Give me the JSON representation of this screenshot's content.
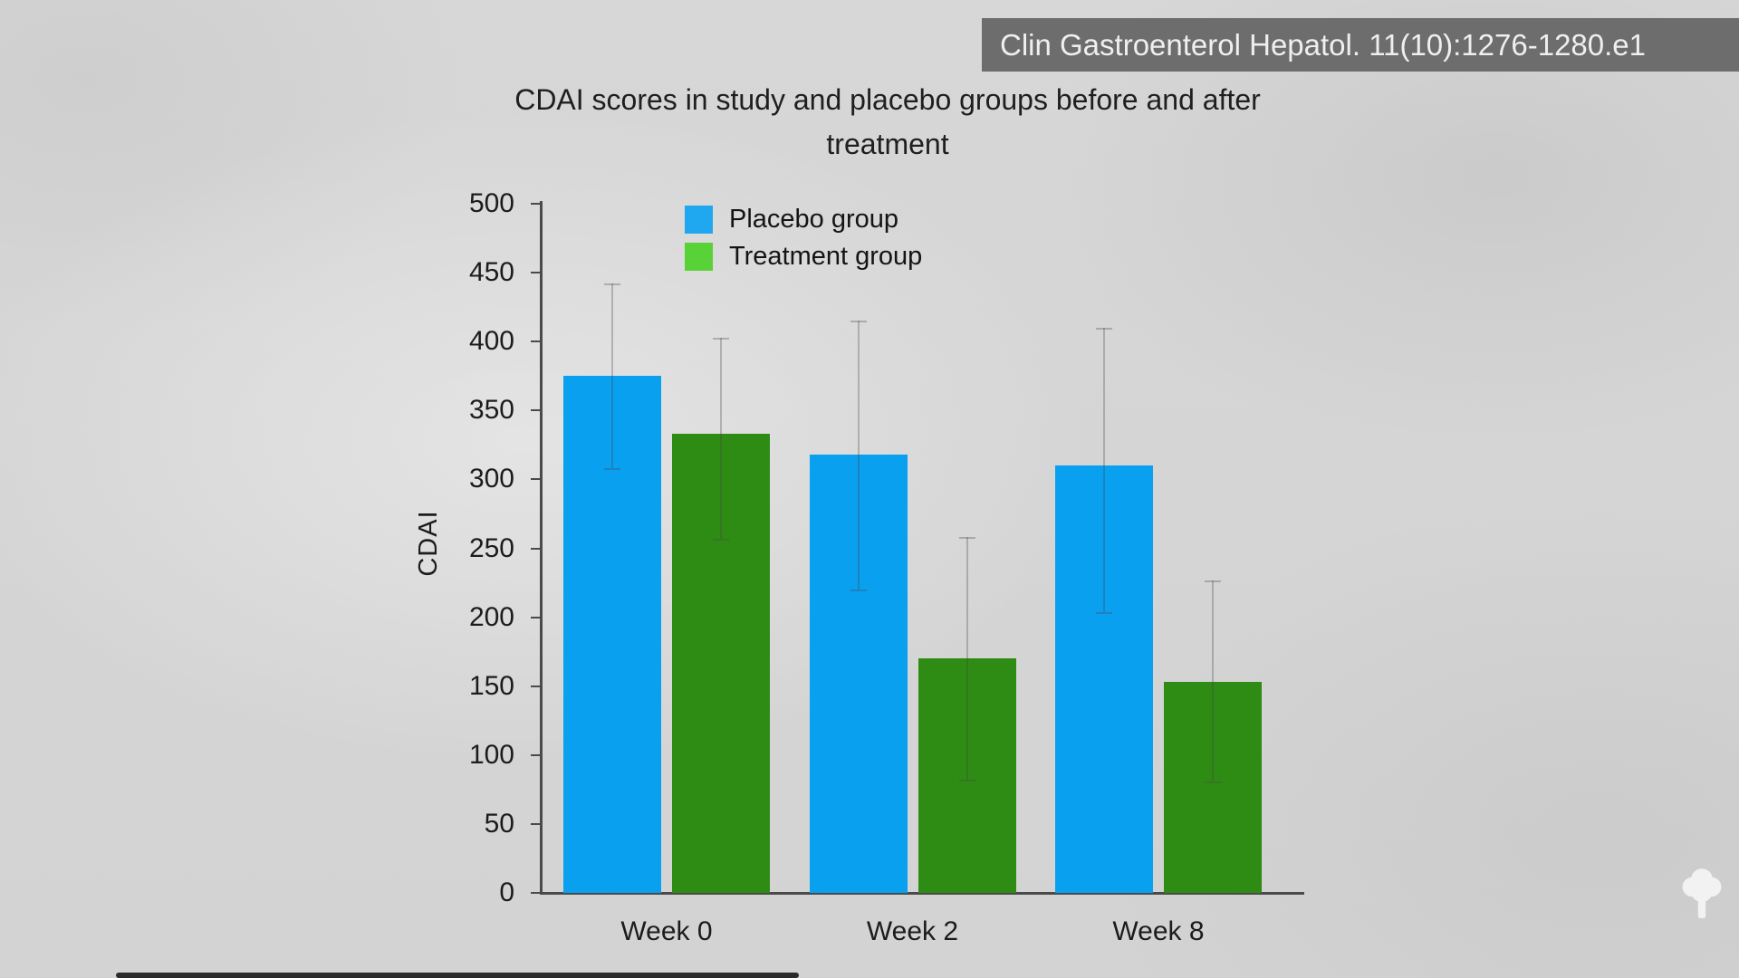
{
  "overlay": {
    "citation": "Clin Gastroenterol Hepatol. 11(10):1276-1280.e1"
  },
  "chart_data": {
    "type": "bar",
    "title": "CDAI scores in study and placebo groups before and after treatment",
    "xlabel": "",
    "ylabel": "CDAI",
    "categories": [
      "Week 0",
      "Week 2",
      "Week 8"
    ],
    "series": [
      {
        "name": "Placebo group",
        "color": "#0aa0f0",
        "legend_color": "#1fa8ef",
        "values": [
          375,
          318,
          310
        ],
        "error_high": [
          442,
          415,
          410
        ],
        "error_low": [
          308,
          220,
          204
        ]
      },
      {
        "name": "Treatment group",
        "color": "#2e8c14",
        "legend_color": "#58d236",
        "values": [
          333,
          170,
          153
        ],
        "error_high": [
          403,
          258,
          227
        ],
        "error_low": [
          257,
          82,
          81
        ]
      }
    ],
    "ylim": [
      0,
      500
    ],
    "yticks": [
      0,
      50,
      100,
      150,
      200,
      250,
      300,
      350,
      400,
      450,
      500
    ],
    "grid": false,
    "legend_position": "top-left-inside"
  },
  "colors": {
    "background": "#d6d6d6",
    "banner_background": "#676767",
    "banner_text": "#efefef",
    "axis": "#4a4a4a",
    "text": "#1c1c1c",
    "error_bar": "#a8a8a8",
    "watermark": "#f2f2f2"
  },
  "icons": {
    "tree": "tree watermark"
  }
}
